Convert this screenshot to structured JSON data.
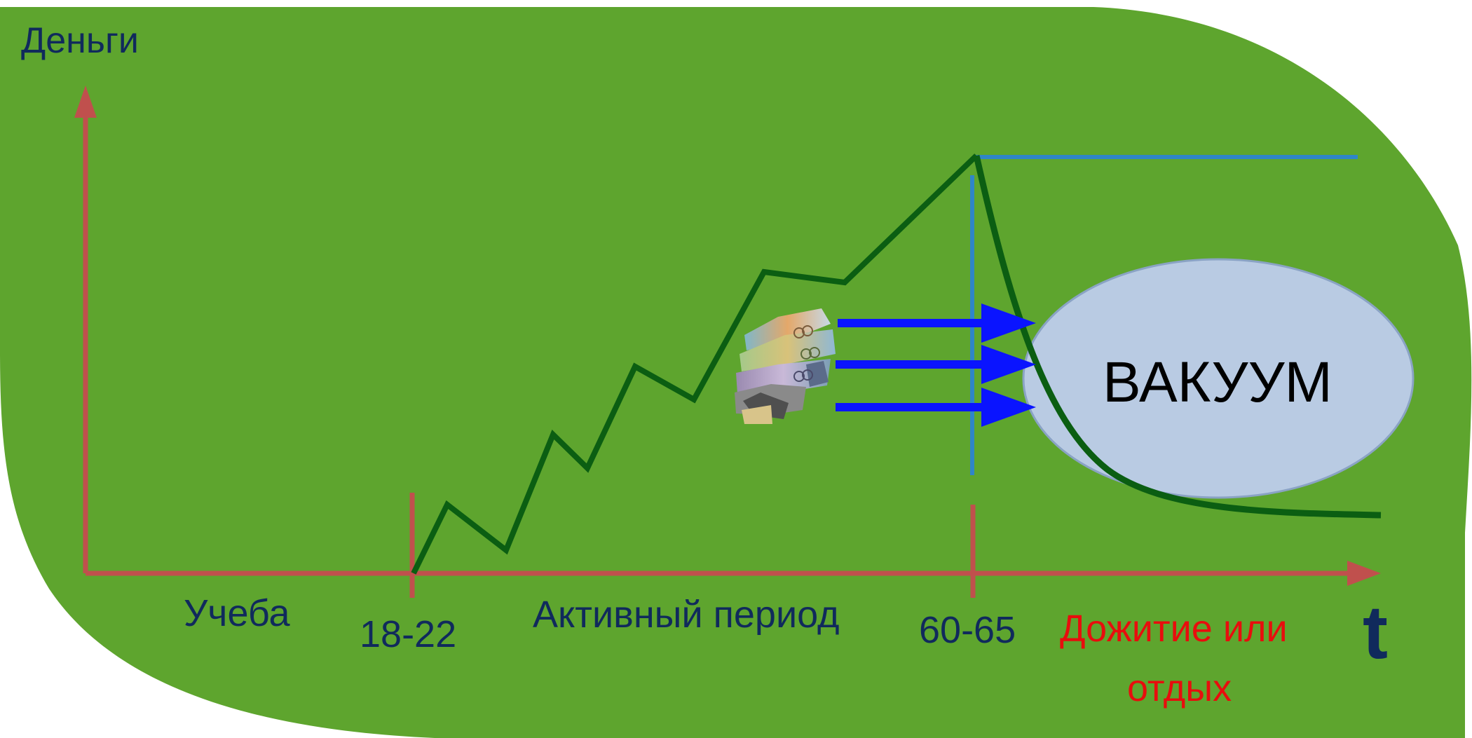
{
  "colors": {
    "background": "#5ea52e",
    "axis": "#c0504d",
    "money_line": "#0b5e12",
    "level_line": "#2f86c8",
    "arrow": "#0a14ff",
    "vacuum_fill": "#b9cbe3",
    "dark_text": "#102a5c",
    "red_text": "#e80d0d"
  },
  "labels": {
    "y_axis": "Деньги",
    "x_axis": "t",
    "study": "Учеба",
    "age_start": "18-22",
    "active_period": "Активный период",
    "age_retire": "60-65",
    "survival_line1": "Дожитие или",
    "survival_line2": "отдых",
    "vacuum": "ВАКУУМ"
  },
  "icons": {
    "money_pile": "banknotes-icon",
    "arrows": "right-arrow-icon"
  }
}
